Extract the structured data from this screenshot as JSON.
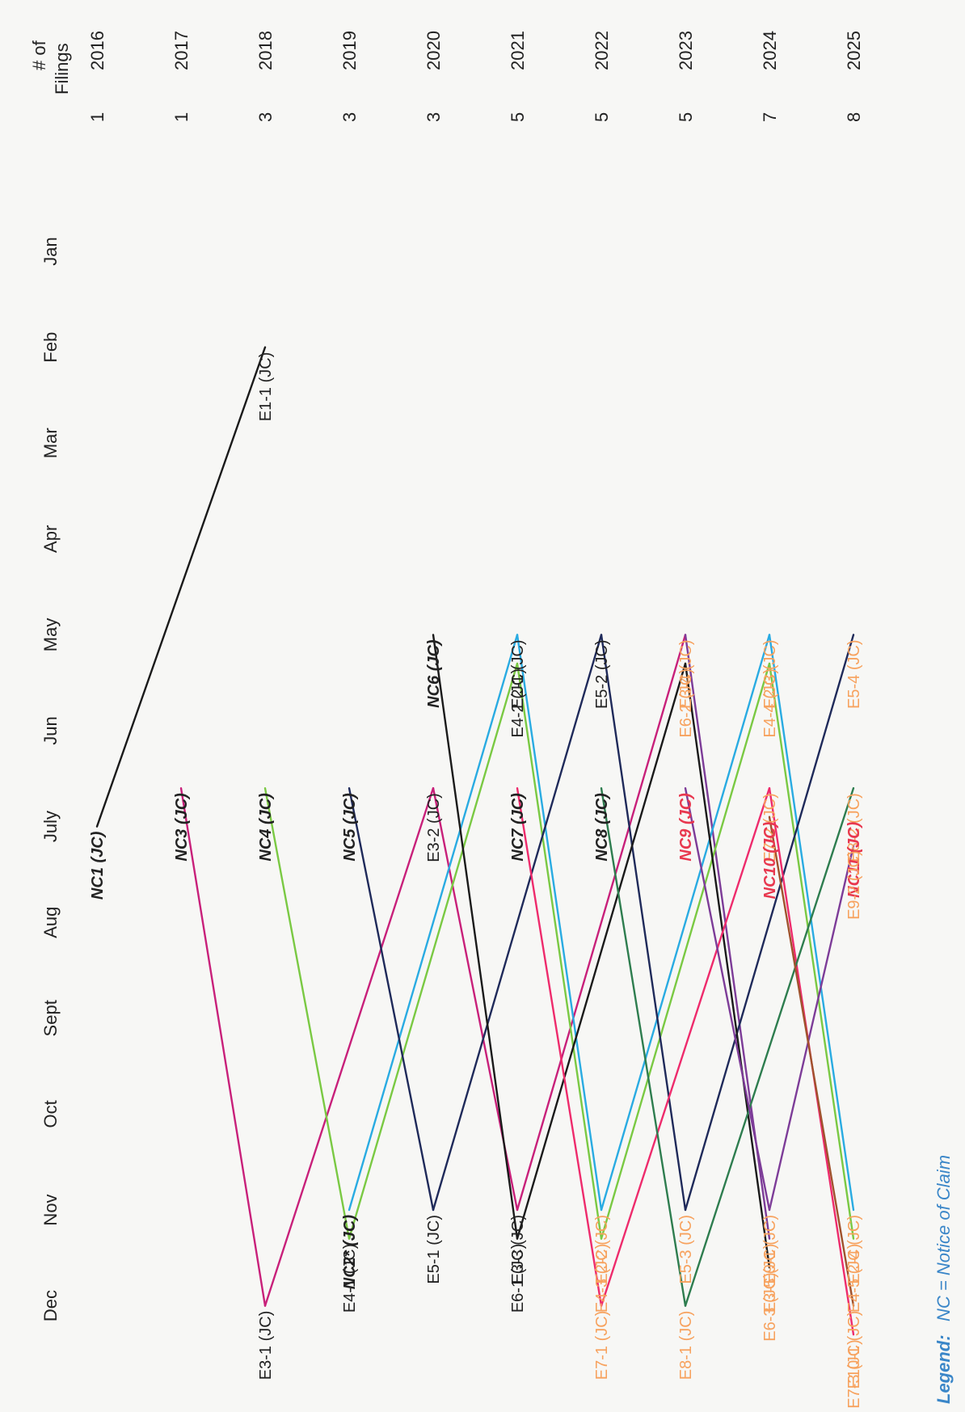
{
  "header": {
    "filings_line1": "# of",
    "filings_line2": "Filings"
  },
  "months": [
    "Jan",
    "Feb",
    "Mar",
    "Apr",
    "May",
    "Jun",
    "July",
    "Aug",
    "Sept",
    "Oct",
    "Nov",
    "Dec"
  ],
  "years": [
    {
      "year": "2016",
      "count": "1"
    },
    {
      "year": "2017",
      "count": "1"
    },
    {
      "year": "2018",
      "count": "3"
    },
    {
      "year": "2019",
      "count": "3"
    },
    {
      "year": "2020",
      "count": "3"
    },
    {
      "year": "2021",
      "count": "5"
    },
    {
      "year": "2022",
      "count": "5"
    },
    {
      "year": "2023",
      "count": "5"
    },
    {
      "year": "2024",
      "count": "7"
    },
    {
      "year": "2025",
      "count": "8"
    }
  ],
  "colors": {
    "black": "#1a1a1a",
    "navy": "#1f2a5a",
    "magenta": "#c8207a",
    "green": "#7ac943",
    "cyan": "#29abe2",
    "pink": "#ee2b6c",
    "purple": "#7d3c98",
    "darkgreen": "#2e7d4f",
    "brown": "#a0522d",
    "orange": "#f7a25e",
    "red": "#e8384f",
    "text": "#222222"
  },
  "filings": [
    {
      "id": "NC1",
      "label": "NC1 (JC)",
      "year": "2016",
      "month": 7.0,
      "nc": true,
      "color": "text"
    },
    {
      "id": "E1-1",
      "label": "E1-1 (JC)",
      "year": "2018",
      "month": 2.0,
      "nc": false,
      "color": "text"
    },
    {
      "id": "NC3",
      "label": "NC3 (JC)",
      "year": "2017",
      "month": 6.6,
      "nc": true,
      "color": "text"
    },
    {
      "id": "E3-1",
      "label": "E3-1 (JC)",
      "year": "2018",
      "month": 12.0,
      "nc": false,
      "color": "text"
    },
    {
      "id": "NC4",
      "label": "NC4 (JC)",
      "year": "2018",
      "month": 6.6,
      "nc": true,
      "color": "text"
    },
    {
      "id": "NC2",
      "label": "NC2* (JC)",
      "year": "2019",
      "month": 11.0,
      "nc": true,
      "color": "text"
    },
    {
      "id": "E4-1",
      "label": "E4-1 (JC)",
      "year": "2019",
      "month": 11.3,
      "nc": false,
      "color": "text"
    },
    {
      "id": "NC5",
      "label": "NC5 (JC)",
      "year": "2019",
      "month": 6.6,
      "nc": true,
      "color": "text"
    },
    {
      "id": "E5-1",
      "label": "E5-1 (JC)",
      "year": "2020",
      "month": 11.0,
      "nc": false,
      "color": "text"
    },
    {
      "id": "NC6",
      "label": "NC6 (JC)",
      "year": "2020",
      "month": 5.0,
      "nc": true,
      "color": "text"
    },
    {
      "id": "E3-2",
      "label": "E3-2 (JC)",
      "year": "2020",
      "month": 6.6,
      "nc": false,
      "color": "text"
    },
    {
      "id": "E3-3",
      "label": "E3-3 (JC)",
      "year": "2021",
      "month": 11.0,
      "nc": false,
      "color": "text"
    },
    {
      "id": "E6-1",
      "label": "E6-1 (JC)",
      "year": "2021",
      "month": 11.3,
      "nc": false,
      "color": "text"
    },
    {
      "id": "E2-1",
      "label": "E2-1 (JC)",
      "year": "2021",
      "month": 5.0,
      "nc": false,
      "color": "text"
    },
    {
      "id": "E4-2",
      "label": "E4-2 (JC)",
      "year": "2021",
      "month": 5.3,
      "nc": false,
      "color": "text"
    },
    {
      "id": "NC7",
      "label": "NC7 (JC)",
      "year": "2021",
      "month": 6.6,
      "nc": true,
      "color": "text"
    },
    {
      "id": "E7-1",
      "label": "E7-1 (JC)",
      "year": "2022",
      "month": 12.0,
      "nc": false,
      "color": "orange"
    },
    {
      "id": "E2-2",
      "label": "E2-2 (JC)",
      "year": "2022",
      "month": 11.0,
      "nc": false,
      "color": "orange"
    },
    {
      "id": "E4-3",
      "label": "E4-3 (JC)",
      "year": "2022",
      "month": 11.3,
      "nc": false,
      "color": "orange"
    },
    {
      "id": "E5-2",
      "label": "E5-2 (JC)",
      "year": "2022",
      "month": 5.0,
      "nc": false,
      "color": "text"
    },
    {
      "id": "NC8",
      "label": "NC8 (JC)",
      "year": "2022",
      "month": 6.6,
      "nc": true,
      "color": "text"
    },
    {
      "id": "E8-1",
      "label": "E8-1 (JC)",
      "year": "2023",
      "month": 12.0,
      "nc": false,
      "color": "orange"
    },
    {
      "id": "E5-3",
      "label": "E5-3 (JC)",
      "year": "2023",
      "month": 11.0,
      "nc": false,
      "color": "orange"
    },
    {
      "id": "NC9",
      "label": "NC9 (JC)",
      "year": "2023",
      "month": 6.6,
      "nc": true,
      "color": "red"
    },
    {
      "id": "E3-4",
      "label": "E3-4 (JC)",
      "year": "2023",
      "month": 5.0,
      "nc": false,
      "color": "orange"
    },
    {
      "id": "E6-2",
      "label": "E6-2 (JC)",
      "year": "2023",
      "month": 5.3,
      "nc": false,
      "color": "orange"
    },
    {
      "id": "E9-1",
      "label": "E9-1 (JC)",
      "year": "2024",
      "month": 11.0,
      "nc": false,
      "color": "orange"
    },
    {
      "id": "E3-5",
      "label": "E3-5 (JC)",
      "year": "2024",
      "month": 11.3,
      "nc": false,
      "color": "orange"
    },
    {
      "id": "E6-3",
      "label": "E6-3 (JC)",
      "year": "2024",
      "month": 11.6,
      "nc": false,
      "color": "orange"
    },
    {
      "id": "E7-2",
      "label": "E7-2 (JC)",
      "year": "2024",
      "month": 6.6,
      "nc": false,
      "color": "orange"
    },
    {
      "id": "NC10",
      "label": "NC10 (JC)",
      "year": "2024",
      "month": 6.9,
      "nc": true,
      "color": "red"
    },
    {
      "id": "E2-3",
      "label": "E2-3 (JC)",
      "year": "2024",
      "month": 5.0,
      "nc": false,
      "color": "orange"
    },
    {
      "id": "E4-4",
      "label": "E4-4 (JC)",
      "year": "2024",
      "month": 5.3,
      "nc": false,
      "color": "orange"
    },
    {
      "id": "E10-1",
      "label": "E10-1 (JC)",
      "year": "2025",
      "month": 12.0,
      "nc": false,
      "color": "orange"
    },
    {
      "id": "E7-3",
      "label": "E7-3 (JC)",
      "year": "2025",
      "month": 12.3,
      "nc": false,
      "color": "orange"
    },
    {
      "id": "E2-4",
      "label": "E2-4 (JC)",
      "year": "2025",
      "month": 11.0,
      "nc": false,
      "color": "orange"
    },
    {
      "id": "E4-5",
      "label": "E4-5 (JC)",
      "year": "2025",
      "month": 11.3,
      "nc": false,
      "color": "orange"
    },
    {
      "id": "E8-2",
      "label": "E8-2 (JC)",
      "year": "2025",
      "month": 6.6,
      "nc": false,
      "color": "orange"
    },
    {
      "id": "NC11",
      "label": "NC11 (JC)",
      "year": "2025",
      "month": 6.9,
      "nc": true,
      "color": "red"
    },
    {
      "id": "E9-2",
      "label": "E9-2 (JC)",
      "year": "2025",
      "month": 7.2,
      "nc": false,
      "color": "orange"
    },
    {
      "id": "E5-4",
      "label": "E5-4 (JC)",
      "year": "2025",
      "month": 5.0,
      "nc": false,
      "color": "orange"
    }
  ],
  "connections": [
    {
      "from": "NC1",
      "to": "E1-1",
      "color": "black"
    },
    {
      "from": "NC3",
      "to": "E3-1",
      "color": "magenta"
    },
    {
      "from": "E3-1",
      "to": "E3-2",
      "color": "magenta"
    },
    {
      "from": "E3-2",
      "to": "E3-3",
      "color": "magenta"
    },
    {
      "from": "E3-3",
      "to": "E3-4",
      "color": "magenta"
    },
    {
      "from": "E3-4",
      "to": "E3-5",
      "color": "purple"
    },
    {
      "from": "NC4",
      "to": "E4-1",
      "color": "green"
    },
    {
      "from": "E4-1",
      "to": "E4-2",
      "color": "green"
    },
    {
      "from": "E4-2",
      "to": "E4-3",
      "color": "green"
    },
    {
      "from": "E4-3",
      "to": "E4-4",
      "color": "green"
    },
    {
      "from": "E4-4",
      "to": "E4-5",
      "color": "green"
    },
    {
      "from": "NC2",
      "to": "E2-1",
      "color": "cyan"
    },
    {
      "from": "E2-1",
      "to": "E2-2",
      "color": "cyan"
    },
    {
      "from": "E2-2",
      "to": "E2-3",
      "color": "cyan"
    },
    {
      "from": "E2-3",
      "to": "E2-4",
      "color": "cyan"
    },
    {
      "from": "NC5",
      "to": "E5-1",
      "color": "navy"
    },
    {
      "from": "E5-1",
      "to": "E5-2",
      "color": "navy"
    },
    {
      "from": "E5-2",
      "to": "E5-3",
      "color": "navy"
    },
    {
      "from": "E5-3",
      "to": "E5-4",
      "color": "navy"
    },
    {
      "from": "NC6",
      "to": "E6-1",
      "color": "black"
    },
    {
      "from": "E6-1",
      "to": "E6-2",
      "color": "black"
    },
    {
      "from": "E6-2",
      "to": "E6-3",
      "color": "black"
    },
    {
      "from": "NC7",
      "to": "E7-1",
      "color": "pink"
    },
    {
      "from": "E7-1",
      "to": "E7-2",
      "color": "pink"
    },
    {
      "from": "E7-2",
      "to": "E7-3",
      "color": "pink"
    },
    {
      "from": "NC8",
      "to": "E8-1",
      "color": "darkgreen"
    },
    {
      "from": "E8-1",
      "to": "E8-2",
      "color": "darkgreen"
    },
    {
      "from": "NC9",
      "to": "E9-1",
      "color": "purple"
    },
    {
      "from": "E9-1",
      "to": "E9-2",
      "color": "purple"
    },
    {
      "from": "NC10",
      "to": "E10-1",
      "color": "brown"
    }
  ],
  "legend": {
    "key": "Legend:",
    "value": "NC = Notice of Claim"
  }
}
